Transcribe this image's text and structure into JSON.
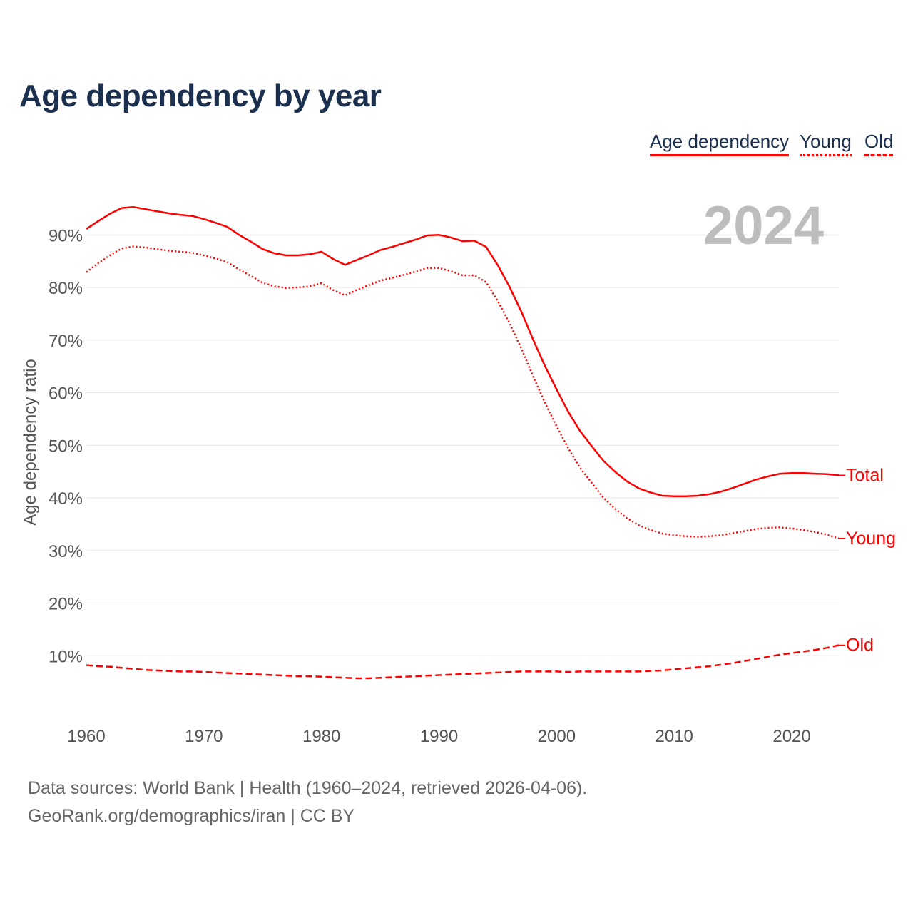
{
  "chart_data": {
    "type": "line",
    "title": "Age dependency by year",
    "xlabel": "",
    "ylabel": "Age dependency ratio",
    "year_label": "2024",
    "xlim": [
      1960,
      2024
    ],
    "ylim": [
      0,
      100
    ],
    "xticks": [
      "1960",
      "1970",
      "1980",
      "1990",
      "2000",
      "2010",
      "2020"
    ],
    "yticks": [
      "10%",
      "20%",
      "30%",
      "40%",
      "50%",
      "60%",
      "70%",
      "80%",
      "90%"
    ],
    "grid": true,
    "legend_position": "top-right",
    "legend": [
      "Age dependency",
      "Young",
      "Old"
    ],
    "x_start": 1960,
    "color": "#ff0000",
    "series": [
      {
        "name": "Total",
        "legend": "Age dependency",
        "style": "solid",
        "values": [
          91.1,
          92.6,
          94.0,
          95.1,
          95.3,
          94.9,
          94.5,
          94.1,
          93.8,
          93.6,
          93.0,
          92.3,
          91.5,
          90.0,
          88.7,
          87.3,
          86.5,
          86.1,
          86.1,
          86.3,
          86.8,
          85.4,
          84.3,
          85.2,
          86.1,
          87.1,
          87.7,
          88.4,
          89.1,
          89.9,
          90.0,
          89.5,
          88.8,
          88.9,
          87.7,
          84.2,
          80.1,
          75.4,
          70.1,
          65.1,
          60.6,
          56.3,
          52.7,
          49.8,
          47.0,
          44.9,
          43.1,
          41.8,
          41.0,
          40.4,
          40.3,
          40.3,
          40.4,
          40.7,
          41.2,
          41.9,
          42.7,
          43.5,
          44.1,
          44.6,
          44.7,
          44.7,
          44.6,
          44.5,
          44.3
        ]
      },
      {
        "name": "Young",
        "legend": "Young",
        "style": "dotted",
        "values": [
          82.9,
          84.6,
          86.1,
          87.4,
          87.8,
          87.6,
          87.3,
          87.0,
          86.8,
          86.6,
          86.1,
          85.5,
          84.8,
          83.4,
          82.2,
          80.9,
          80.2,
          79.9,
          80.0,
          80.2,
          80.8,
          79.5,
          78.5,
          79.5,
          80.4,
          81.3,
          81.8,
          82.4,
          83.0,
          83.7,
          83.7,
          83.1,
          82.3,
          82.3,
          81.0,
          77.4,
          73.2,
          68.4,
          63.1,
          58.1,
          53.6,
          49.4,
          45.7,
          42.8,
          40.0,
          37.9,
          36.1,
          34.8,
          33.9,
          33.2,
          32.9,
          32.7,
          32.6,
          32.7,
          32.9,
          33.3,
          33.7,
          34.1,
          34.3,
          34.4,
          34.2,
          33.9,
          33.5,
          33.0,
          32.3
        ]
      },
      {
        "name": "Old",
        "legend": "Old",
        "style": "dashed",
        "values": [
          8.2,
          8.0,
          7.9,
          7.7,
          7.5,
          7.3,
          7.2,
          7.1,
          7.0,
          7.0,
          6.9,
          6.8,
          6.7,
          6.6,
          6.5,
          6.4,
          6.3,
          6.2,
          6.1,
          6.1,
          6.0,
          5.9,
          5.8,
          5.7,
          5.7,
          5.8,
          5.9,
          6.0,
          6.1,
          6.2,
          6.3,
          6.4,
          6.5,
          6.6,
          6.7,
          6.8,
          6.9,
          7.0,
          7.0,
          7.0,
          7.0,
          6.9,
          7.0,
          7.0,
          7.0,
          7.0,
          7.0,
          7.0,
          7.1,
          7.2,
          7.4,
          7.6,
          7.8,
          8.0,
          8.3,
          8.6,
          9.0,
          9.4,
          9.8,
          10.2,
          10.5,
          10.8,
          11.1,
          11.5,
          12.0
        ]
      }
    ]
  },
  "footer": {
    "line1": "Data sources: World Bank | Health (1960–2024, retrieved 2026-04-06).",
    "line2": "GeoRank.org/demographics/iran | CC BY"
  }
}
